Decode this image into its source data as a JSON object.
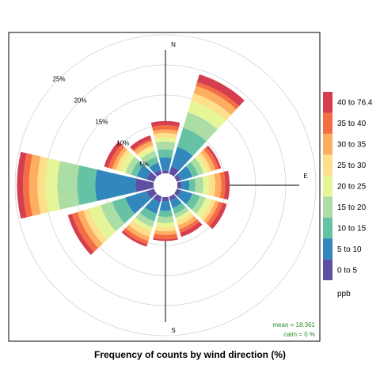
{
  "chart_data": {
    "type": "windrose",
    "title": "Frequency of counts by wind direction (%)",
    "direction_labels": {
      "N": "N",
      "E": "E",
      "S": "S"
    },
    "ring_values": [
      5,
      10,
      15,
      20,
      25
    ],
    "ring_labels": [
      "5%",
      "10%",
      "15%",
      "20%",
      "25%"
    ],
    "rmax": 25,
    "bins": [
      "0 to 5",
      "5 to 10",
      "10 to 15",
      "15 to 20",
      "20 to 25",
      "25 to 30",
      "30 to 35",
      "35 to 40",
      "40 to 76.4"
    ],
    "bin_colors": [
      "#5e4fa2",
      "#3288bd",
      "#66c2a5",
      "#abdda4",
      "#e6f598",
      "#fee08b",
      "#fdae61",
      "#f46d43",
      "#d53e4f"
    ],
    "top_bin_color": "#9e0142",
    "legend_title": "ppb",
    "directions": [
      0,
      30,
      60,
      90,
      120,
      150,
      180,
      210,
      240,
      270,
      300,
      330
    ],
    "cumulative": [
      [
        0.5,
        2.7,
        4.0,
        5.3,
        6.0,
        6.7,
        7.3,
        8.0,
        8.7
      ],
      [
        1.3,
        4.7,
        8.0,
        10.7,
        12.7,
        14.0,
        15.3,
        16.0,
        17.3
      ],
      [
        0.7,
        2.7,
        3.7,
        4.7,
        5.3,
        6.0,
        6.7,
        7.3,
        7.7
      ],
      [
        0.7,
        2.0,
        3.0,
        4.3,
        5.3,
        6.3,
        7.3,
        8.0,
        8.7
      ],
      [
        0.7,
        2.7,
        4.0,
        5.0,
        6.0,
        6.7,
        7.3,
        8.0,
        8.7
      ],
      [
        0.7,
        2.0,
        3.0,
        3.7,
        4.3,
        5.0,
        5.7,
        6.3,
        7.0
      ],
      [
        0.7,
        2.3,
        3.3,
        4.3,
        5.0,
        5.7,
        6.3,
        7.0,
        7.3
      ],
      [
        1.0,
        3.0,
        4.3,
        5.3,
        6.0,
        7.0,
        7.7,
        8.3,
        8.7
      ],
      [
        1.3,
        5.0,
        7.3,
        9.3,
        11.3,
        12.3,
        13.3,
        14.3,
        15.0
      ],
      [
        3.0,
        9.7,
        12.7,
        16.0,
        18.0,
        19.3,
        20.7,
        21.7,
        22.7
      ],
      [
        1.3,
        3.0,
        4.0,
        5.0,
        6.0,
        6.7,
        7.3,
        8.0,
        8.7
      ],
      [
        0.7,
        2.0,
        3.0,
        4.0,
        4.7,
        5.0,
        5.7,
        6.0,
        6.7
      ]
    ],
    "stats": {
      "mean_text": "mean = 18.361",
      "calm_text": "calm = 0 %"
    }
  }
}
